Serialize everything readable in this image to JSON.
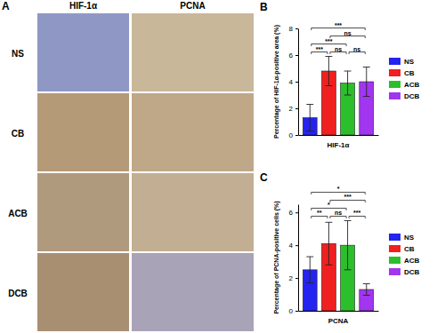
{
  "panel_a": {
    "label": "A",
    "columns": [
      "HIF-1α",
      "PCNA"
    ],
    "rows": [
      "NS",
      "CB",
      "ACB",
      "DCB"
    ]
  },
  "chart_data": [
    {
      "type": "bar",
      "panel": "B",
      "categories": [
        "NS",
        "CB",
        "ACB",
        "DCB"
      ],
      "values": [
        1.3,
        4.8,
        3.9,
        4.0
      ],
      "errors": [
        1.0,
        1.1,
        0.9,
        1.1
      ],
      "colors": [
        "#2424f0",
        "#f02020",
        "#2cbf2c",
        "#a236f0"
      ],
      "y_label": "Percentage of HIF-1α-positive area (%)",
      "x_label": "HIF-1α",
      "ylim": [
        0,
        8
      ],
      "yticks": [
        0,
        2,
        4,
        6,
        8
      ],
      "tick_labels": "y",
      "legend": "right",
      "grid": false,
      "comparisons": [
        {
          "from": 0,
          "to": 1,
          "label": "***"
        },
        {
          "from": 0,
          "to": 2,
          "label": "***"
        },
        {
          "from": 0,
          "to": 3,
          "label": "***"
        },
        {
          "from": 1,
          "to": 2,
          "label": "ns"
        },
        {
          "from": 2,
          "to": 3,
          "label": "ns"
        },
        {
          "from": 1,
          "to": 3,
          "label": "ns"
        }
      ]
    },
    {
      "type": "bar",
      "panel": "C",
      "categories": [
        "NS",
        "CB",
        "ACB",
        "DCB"
      ],
      "values": [
        2.5,
        4.1,
        4.0,
        1.3
      ],
      "errors": [
        0.8,
        1.3,
        1.5,
        0.35
      ],
      "colors": [
        "#2424f0",
        "#f02020",
        "#2cbf2c",
        "#a236f0"
      ],
      "y_label": "Percentage of PCNA-positive cells (%)",
      "x_label": "PCNA",
      "ylim": [
        0,
        6.5
      ],
      "yticks": [
        0,
        2,
        4,
        6
      ],
      "tick_labels": "y",
      "legend": "right",
      "grid": false,
      "comparisons": [
        {
          "from": 0,
          "to": 1,
          "label": "**"
        },
        {
          "from": 0,
          "to": 2,
          "label": "*"
        },
        {
          "from": 0,
          "to": 3,
          "label": "*"
        },
        {
          "from": 1,
          "to": 2,
          "label": "ns"
        },
        {
          "from": 2,
          "to": 3,
          "label": "***"
        },
        {
          "from": 1,
          "to": 3,
          "label": "***"
        }
      ]
    }
  ]
}
